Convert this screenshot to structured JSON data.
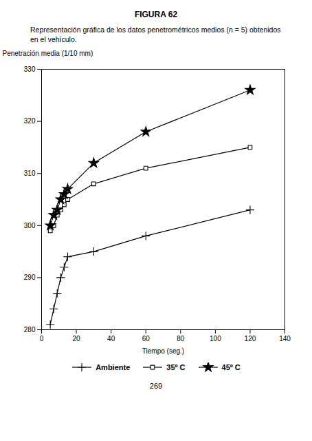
{
  "chart_data": {
    "type": "line",
    "title": "FIGURA 62",
    "subtitle": [
      "Representación gráfica de los datos penetrométricos medios (n = 5) obtenidos",
      "en el vehículo."
    ],
    "annotations": [
      "269"
    ],
    "xlabel": "Tiempo (seg.)",
    "ylabel": "Penetración media (1/10 mm)",
    "x": [
      5,
      7,
      9,
      11,
      13,
      15,
      30,
      60,
      120
    ],
    "series": [
      {
        "name": "Ambiente",
        "color": "#000000",
        "marker": "plus",
        "values": [
          281,
          284,
          287,
          290,
          292,
          294,
          295,
          298,
          303
        ]
      },
      {
        "name": "35º C",
        "color": "#000000",
        "marker": "square",
        "values": [
          299,
          300,
          302,
          303,
          304,
          305,
          308,
          311,
          315
        ]
      },
      {
        "name": "45º C",
        "color": "#000000",
        "marker": "star",
        "values": [
          300,
          302,
          303,
          305,
          306,
          307,
          312,
          318,
          326
        ]
      }
    ],
    "xlim": [
      0,
      140
    ],
    "ylim": [
      280,
      330
    ],
    "xticks": [
      0,
      20,
      40,
      60,
      80,
      100,
      120,
      140
    ],
    "yticks": [
      280,
      290,
      300,
      310,
      320,
      330
    ],
    "grid": false,
    "legend": "bottom"
  }
}
